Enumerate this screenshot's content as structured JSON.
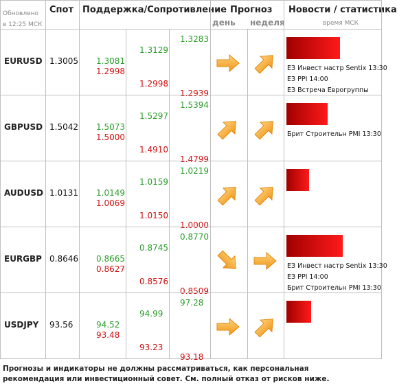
{
  "header": {
    "updated": "Обновлено в 12:25 МСК",
    "spot": "Спот",
    "levels": "Поддержка/Сопротивление",
    "forecast": "Прогноз",
    "day": "день",
    "week": "неделя",
    "news": "Новости / статистика",
    "time": "время МСК"
  },
  "rows": [
    {
      "pair": "EURUSD",
      "spot": "1.3005",
      "levels": [
        "1.3283",
        "1.3129",
        "1.3081",
        "1.2998",
        "1.2998",
        "1.2939"
      ],
      "news": [
        "ЕЗ Инвест настр Sentix 13:30",
        "ЕЗ PPI 14:00",
        "ЕЗ Встреча Еврогруппы"
      ]
    },
    {
      "pair": "GBPUSD",
      "spot": "1.5042",
      "levels": [
        "1.5394",
        "1.5297",
        "1.5073",
        "1.5000",
        "1.4910",
        "1.4799"
      ],
      "news": [
        "Брит Строительн PMI 13:30"
      ]
    },
    {
      "pair": "AUDUSD",
      "spot": "1.0131",
      "levels": [
        "1.0219",
        "1.0159",
        "1.0149",
        "1.0069",
        "1.0150",
        "1.0000"
      ],
      "news": []
    },
    {
      "pair": "EURGBP",
      "spot": "0.8646",
      "levels": [
        "0.8770",
        "0.8745",
        "0.8665",
        "0.8627",
        "0.8576",
        "0.8509"
      ],
      "news": [
        "ЕЗ Инвест настр Sentix 13:30",
        "ЕЗ PPI 14:00",
        "Брит Строительн PMI 13:30"
      ]
    },
    {
      "pair": "USDJPY",
      "spot": "93.56",
      "levels": [
        "97.28",
        "94.99",
        "94.52",
        "93.48",
        "93.23",
        "93.18"
      ],
      "news": []
    }
  ],
  "footer": "Прогнозы и индикаторы не должны рассматриваться, как персональная рекомендация или инвестиционный совет. См. полный отказ от рисков ниже."
}
